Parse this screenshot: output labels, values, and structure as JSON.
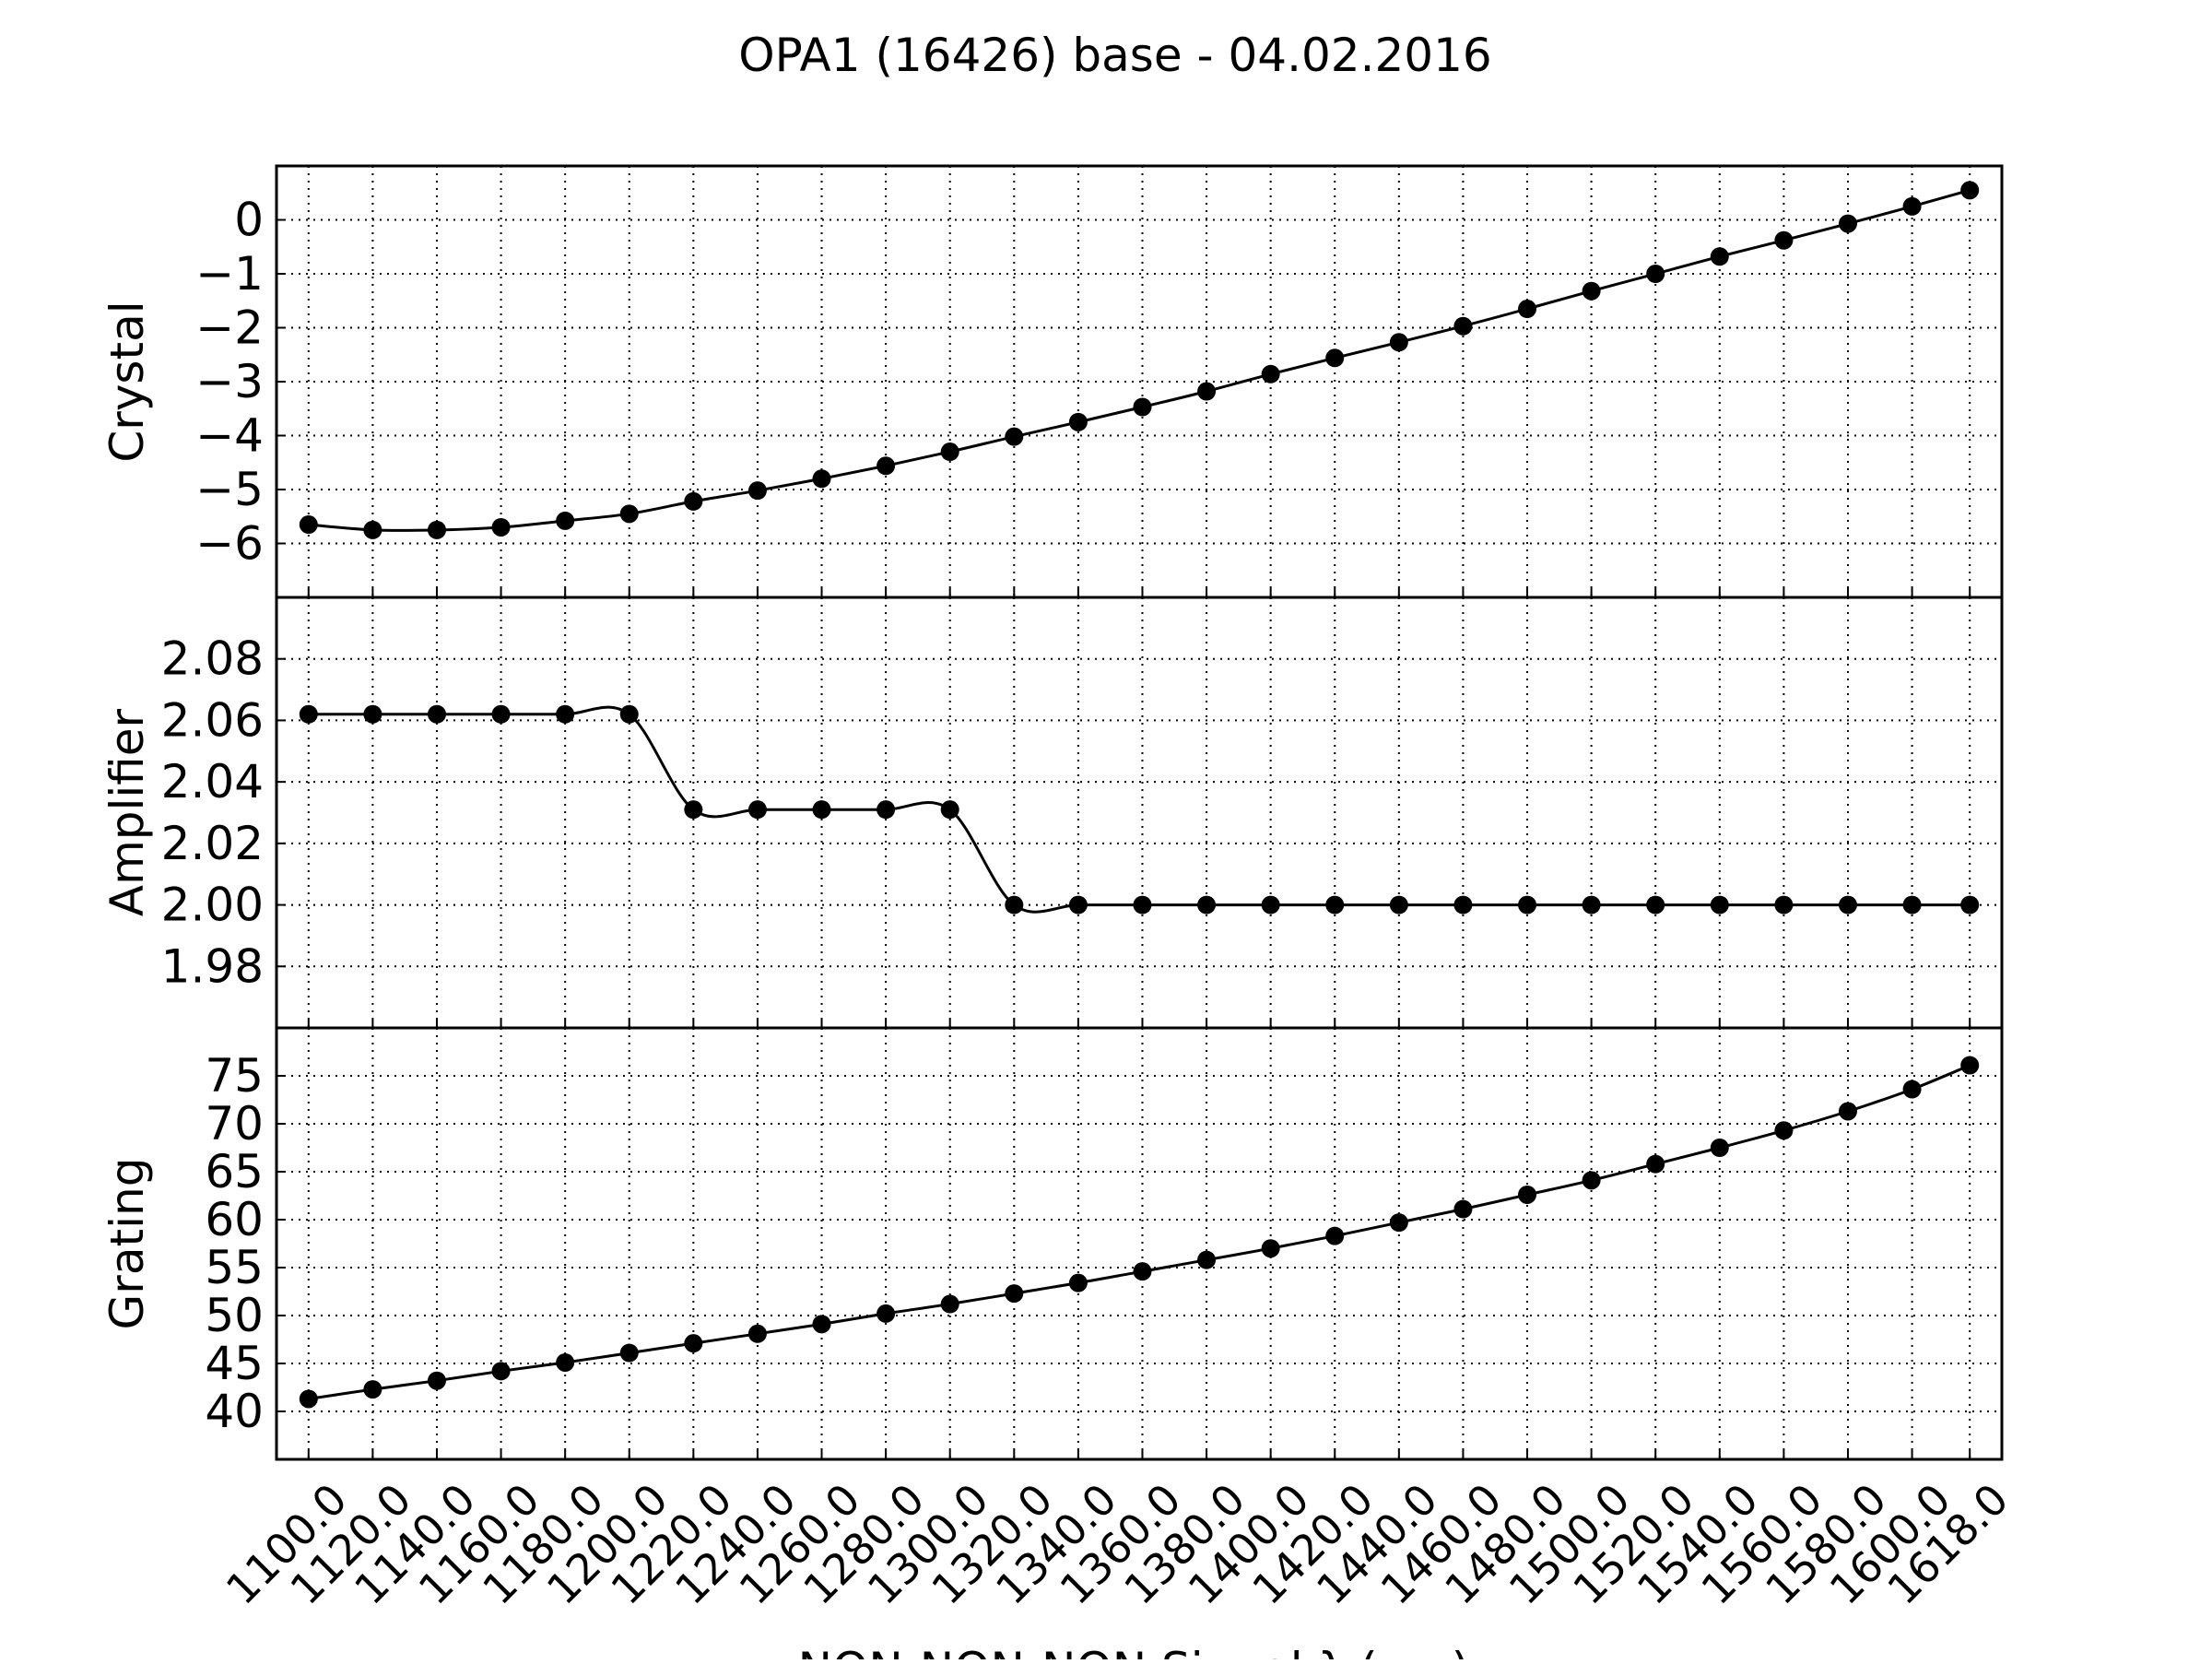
{
  "chart_data": {
    "type": "line",
    "title": "OPA1 (16426) base - 04.02.2016",
    "xlabel": "NON-NON-NON Signal λ (nm)",
    "x": [
      1100,
      1120,
      1140,
      1160,
      1180,
      1200,
      1220,
      1240,
      1260,
      1280,
      1300,
      1320,
      1340,
      1360,
      1380,
      1400,
      1420,
      1440,
      1460,
      1480,
      1500,
      1520,
      1540,
      1560,
      1580,
      1600,
      1618
    ],
    "x_tick_labels": [
      "1100.0",
      "1120.0",
      "1140.0",
      "1160.0",
      "1180.0",
      "1200.0",
      "1220.0",
      "1240.0",
      "1260.0",
      "1280.0",
      "1300.0",
      "1320.0",
      "1340.0",
      "1360.0",
      "1380.0",
      "1400.0",
      "1420.0",
      "1440.0",
      "1460.0",
      "1480.0",
      "1500.0",
      "1520.0",
      "1540.0",
      "1560.0",
      "1580.0",
      "1600.0",
      "1618.0"
    ],
    "grid": true,
    "color": "#000000",
    "subplots": [
      {
        "ylabel": "Crystal",
        "ylim": [
          -7.0,
          1.0
        ],
        "yticks": [
          0,
          -1,
          -2,
          -3,
          -4,
          -5,
          -6
        ],
        "ytick_labels": [
          "0",
          "−1",
          "−2",
          "−3",
          "−4",
          "−5",
          "−6"
        ],
        "values": [
          -5.65,
          -5.75,
          -5.75,
          -5.7,
          -5.58,
          -5.45,
          -5.22,
          -5.02,
          -4.8,
          -4.56,
          -4.3,
          -4.02,
          -3.75,
          -3.47,
          -3.18,
          -2.86,
          -2.56,
          -2.27,
          -1.97,
          -1.65,
          -1.32,
          -1.0,
          -0.68,
          -0.38,
          -0.07,
          0.25,
          0.55
        ]
      },
      {
        "ylabel": "Amplifier",
        "ylim": [
          1.96,
          2.1
        ],
        "yticks": [
          2.08,
          2.06,
          2.04,
          2.02,
          2.0,
          1.98
        ],
        "ytick_labels": [
          "2.08",
          "2.06",
          "2.04",
          "2.02",
          "2.00",
          "1.98"
        ],
        "values": [
          2.062,
          2.062,
          2.062,
          2.062,
          2.062,
          2.062,
          2.031,
          2.031,
          2.031,
          2.031,
          2.031,
          2.0,
          2.0,
          2.0,
          2.0,
          2.0,
          2.0,
          2.0,
          2.0,
          2.0,
          2.0,
          2.0,
          2.0,
          2.0,
          2.0,
          2.0,
          2.0
        ]
      },
      {
        "ylabel": "Grating",
        "ylim": [
          35,
          80
        ],
        "yticks": [
          75,
          70,
          65,
          60,
          55,
          50,
          45,
          40
        ],
        "ytick_labels": [
          "75",
          "70",
          "65",
          "60",
          "55",
          "50",
          "45",
          "40"
        ],
        "values": [
          41.3,
          42.3,
          43.2,
          44.2,
          45.1,
          46.1,
          47.1,
          48.1,
          49.1,
          50.2,
          51.2,
          52.3,
          53.4,
          54.6,
          55.8,
          57.0,
          58.3,
          59.7,
          61.1,
          62.6,
          64.1,
          65.8,
          67.5,
          69.3,
          71.3,
          73.6,
          76.1
        ]
      }
    ]
  }
}
